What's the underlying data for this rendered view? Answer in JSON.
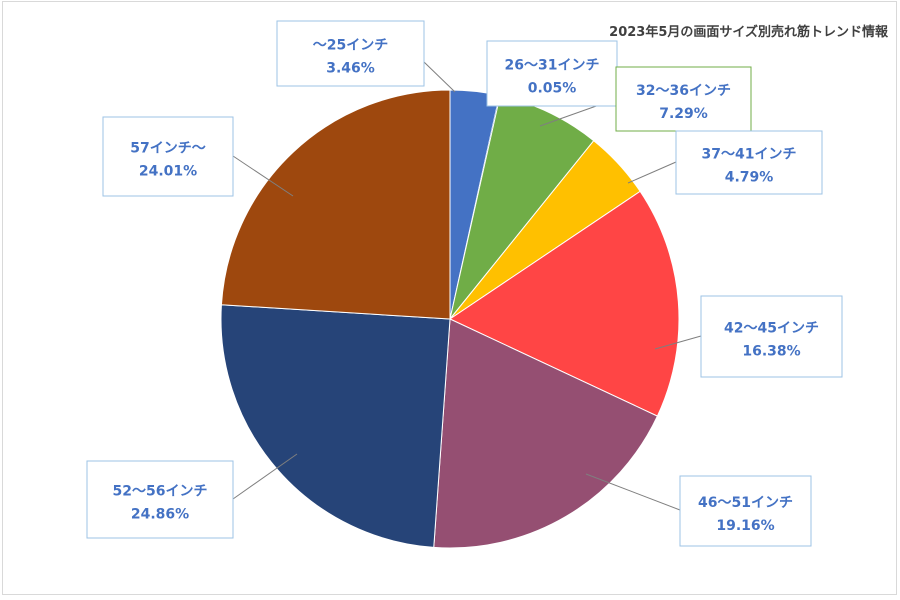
{
  "chart_data": {
    "type": "pie",
    "title": "2023年5月の画面サイズ別売れ筋トレンド情報",
    "unit": "%",
    "slices": [
      {
        "label": "〜25インチ",
        "value": 3.46,
        "value_label": "3.46%",
        "color": "#4472C4",
        "label_color": "#4472C4"
      },
      {
        "label": "26〜31インチ",
        "value": 0.05,
        "value_label": "0.05%",
        "color": "#2E75B6",
        "label_color": "#4472C4"
      },
      {
        "label": "32〜36インチ",
        "value": 7.29,
        "value_label": "7.29%",
        "color": "#70AD47",
        "label_color": "#4472C4"
      },
      {
        "label": "37〜41インチ",
        "value": 4.79,
        "value_label": "4.79%",
        "color": "#FFC000",
        "label_color": "#4472C4"
      },
      {
        "label": "42〜45インチ",
        "value": 16.38,
        "value_label": "16.38%",
        "color": "#FF4545",
        "label_color": "#4472C4"
      },
      {
        "label": "46〜51インチ",
        "value": 19.16,
        "value_label": "19.16%",
        "color": "#954F72",
        "label_color": "#4472C4"
      },
      {
        "label": "52〜56インチ",
        "value": 24.86,
        "value_label": "24.86%",
        "color": "#264478",
        "label_color": "#4472C4"
      },
      {
        "label": "57インチ〜",
        "value": 24.01,
        "value_label": "24.01%",
        "color": "#9E480E",
        "label_color": "#4472C4"
      }
    ]
  }
}
